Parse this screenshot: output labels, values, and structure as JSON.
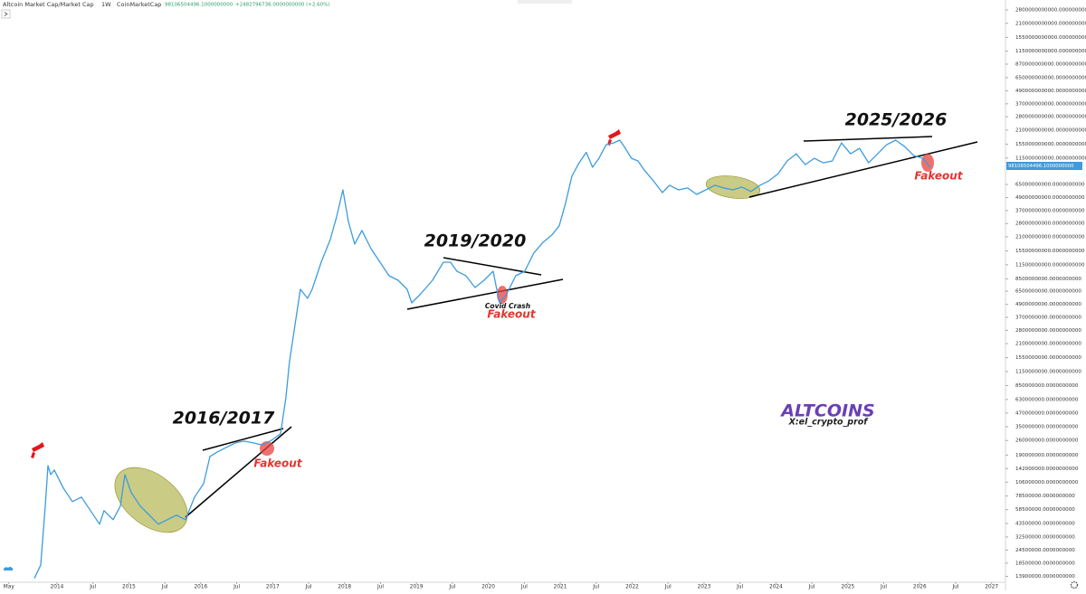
{
  "chart_data": {
    "type": "line",
    "title": "Altcoin Market Cap/Market Cap",
    "interval": "1W",
    "source": "CoinMarketCap",
    "header_value": "98106504496.1000000000",
    "header_change": "+2482796736.0000000000 (+2.60%)",
    "price_tag": "98106504496.1000000000",
    "color": "#3d9be0",
    "log_scale": true,
    "xlim": [
      2013.207,
      2027.18
    ],
    "ylim": [
      12000000,
      3470000000000
    ],
    "xticks": [
      {
        "value": 2013.33,
        "label": "May"
      },
      2014,
      {
        "value": 2014.5,
        "label": "Jul"
      },
      2015,
      {
        "value": 2015.5,
        "label": "Jul"
      },
      2016,
      {
        "value": 2016.5,
        "label": "Jul"
      },
      2017,
      {
        "value": 2017.5,
        "label": "Jul"
      },
      2018,
      {
        "value": 2018.5,
        "label": "Jul"
      },
      2019,
      {
        "value": 2019.5,
        "label": "Jul"
      },
      2020,
      {
        "value": 2020.5,
        "label": "Jul"
      },
      2021,
      {
        "value": 2021.5,
        "label": "Jul"
      },
      2022,
      {
        "value": 2022.5,
        "label": "Jul"
      },
      2023,
      {
        "value": 2023.5,
        "label": "Jul"
      },
      2024,
      {
        "value": 2024.5,
        "label": "Jul"
      },
      2025,
      {
        "value": 2025.5,
        "label": "Jul"
      },
      2026,
      {
        "value": 2026.5,
        "label": "Jul"
      },
      2027
    ],
    "yticks": [
      {
        "value": 2800000000000,
        "label": "2800000000000.0000000000"
      },
      {
        "value": 2100000000000,
        "label": "2100000000000.0000000000"
      },
      {
        "value": 1550000000000,
        "label": "1550000000000.0000000000"
      },
      {
        "value": 1150000000000,
        "label": "1150000000000.0000000000"
      },
      {
        "value": 870000000000,
        "label": "870000000000.0000000000"
      },
      {
        "value": 650000000000,
        "label": "650000000000.0000000000"
      },
      {
        "value": 490000000000,
        "label": "490000000000.0000000000"
      },
      {
        "value": 370000000000,
        "label": "370000000000.0000000000"
      },
      {
        "value": 280000000000,
        "label": "280000000000.0000000000"
      },
      {
        "value": 210000000000,
        "label": "210000000000.0000000000"
      },
      {
        "value": 155000000000,
        "label": "155000000000.0000000000"
      },
      {
        "value": 115000000000,
        "label": "115000000000.0000000000"
      },
      {
        "value": 65000000000,
        "label": "65000000000.0000000000"
      },
      {
        "value": 49000000000,
        "label": "49000000000.0000000000"
      },
      {
        "value": 37000000000,
        "label": "37000000000.0000000000"
      },
      {
        "value": 28000000000,
        "label": "28000000000.0000000000"
      },
      {
        "value": 21000000000,
        "label": "21000000000.0000000000"
      },
      {
        "value": 15500000000,
        "label": "15500000000.0000000000"
      },
      {
        "value": 11500000000,
        "label": "11500000000.0000000000"
      },
      {
        "value": 8500000000,
        "label": "8500000000.0000000000"
      },
      {
        "value": 6500000000,
        "label": "6500000000.0000000000"
      },
      {
        "value": 4900000000,
        "label": "4900000000.0000000000"
      },
      {
        "value": 3700000000,
        "label": "3700000000.0000000000"
      },
      {
        "value": 2800000000,
        "label": "2800000000.0000000000"
      },
      {
        "value": 2100000000,
        "label": "2100000000.0000000000"
      },
      {
        "value": 1550000000,
        "label": "1550000000.0000000000"
      },
      {
        "value": 1150000000,
        "label": "1150000000.0000000000"
      },
      {
        "value": 850000000,
        "label": "850000000.0000000000"
      },
      {
        "value": 630000000,
        "label": "630000000.0000000000"
      },
      {
        "value": 470000000,
        "label": "470000000.0000000000"
      },
      {
        "value": 350000000,
        "label": "350000000.0000000000"
      },
      {
        "value": 260000000,
        "label": "260000000.0000000000"
      },
      {
        "value": 190000000,
        "label": "190000000.0000000000"
      },
      {
        "value": 142000000,
        "label": "142000000.0000000000"
      },
      {
        "value": 106000000,
        "label": "106000000.0000000000"
      },
      {
        "value": 78500000,
        "label": "78500000.0000000000"
      },
      {
        "value": 58500000,
        "label": "58500000.0000000000"
      },
      {
        "value": 43500000,
        "label": "43500000.0000000000"
      },
      {
        "value": 32500000,
        "label": "32500000.0000000000"
      },
      {
        "value": 24500000,
        "label": "24500000.0000000000"
      },
      {
        "value": 18500000,
        "label": "18500000.0000000000"
      },
      {
        "value": 13900000,
        "label": "13900000.0000000000"
      }
    ],
    "x": [
      2013.685,
      2013.773,
      2013.836,
      2013.874,
      2013.912,
      2013.962,
      2014.025,
      2014.088,
      2014.214,
      2014.34,
      2014.466,
      2014.592,
      2014.654,
      2014.78,
      2014.881,
      2014.944,
      2015.032,
      2015.158,
      2015.284,
      2015.41,
      2015.535,
      2015.661,
      2015.787,
      2015.913,
      2016.039,
      2016.127,
      2016.228,
      2016.353,
      2016.479,
      2016.605,
      2016.731,
      2016.857,
      2016.983,
      2017.109,
      2017.184,
      2017.234,
      2017.31,
      2017.385,
      2017.486,
      2017.549,
      2017.675,
      2017.801,
      2017.889,
      2017.977,
      2018.052,
      2018.14,
      2018.241,
      2018.367,
      2018.493,
      2018.619,
      2018.745,
      2018.87,
      2018.933,
      2019.059,
      2019.223,
      2019.374,
      2019.474,
      2019.563,
      2019.688,
      2019.814,
      2019.94,
      2020.066,
      2020.154,
      2020.255,
      2020.381,
      2020.506,
      2020.632,
      2020.758,
      2020.884,
      2020.985,
      2021.073,
      2021.161,
      2021.262,
      2021.362,
      2021.45,
      2021.538,
      2021.639,
      2021.74,
      2021.828,
      2021.891,
      2021.991,
      2022.08,
      2022.168,
      2022.294,
      2022.42,
      2022.52,
      2022.646,
      2022.772,
      2022.898,
      2023.024,
      2023.149,
      2023.275,
      2023.401,
      2023.527,
      2023.653,
      2023.779,
      2023.905,
      2024.03,
      2024.156,
      2024.282,
      2024.408,
      2024.533,
      2024.659,
      2024.785,
      2024.911,
      2025.037,
      2025.163,
      2025.289,
      2025.415,
      2025.54,
      2025.666,
      2025.792,
      2025.918,
      2026.044,
      2026.145
    ],
    "values": [
      13300000,
      17800000,
      63200000,
      151400000,
      124600000,
      137400000,
      113100000,
      93200000,
      69700000,
      76800000,
      57300000,
      42800000,
      57300000,
      47200000,
      63200000,
      124600000,
      84500000,
      63200000,
      52000000,
      42800000,
      47200000,
      52000000,
      47200000,
      76800000,
      102700000,
      184100000,
      203000000,
      223800000,
      246700000,
      256700000,
      246700000,
      235500000,
      261700000,
      300200000,
      656000000,
      1430000000,
      3110000000,
      6770000000,
      5570000000,
      6770000000,
      12150000000,
      19800000000,
      32300000000,
      57900000000,
      29300000000,
      18000000000,
      24100000000,
      16300000000,
      12150000000,
      9070000000,
      8230000000,
      6770000000,
      5060000000,
      6140000000,
      8230000000,
      12150000000,
      12150000000,
      10000000000,
      9070000000,
      7050000000,
      8230000000,
      10000000000,
      5060000000,
      6140000000,
      9070000000,
      10000000000,
      14800000000,
      18600000000,
      21900000000,
      26600000000,
      43300000000,
      77600000000,
      103600000000,
      130000000000,
      94100000000,
      114200000000,
      153000000000,
      159000000000,
      169000000000,
      147000000000,
      114200000000,
      108000000000,
      88700000000,
      70400000000,
      54600000000,
      63900000000,
      57900000000,
      60300000000,
      52500000000,
      57900000000,
      63900000000,
      60300000000,
      57900000000,
      61500000000,
      55800000000,
      63900000000,
      70400000000,
      82000000000,
      108000000000,
      126000000000,
      99700000000,
      114200000000,
      103600000000,
      108000000000,
      159000000000,
      126000000000,
      141500000000,
      103600000000,
      126000000000,
      153000000000,
      169000000000,
      147000000000,
      121000000000,
      114200000000,
      94100000000
    ],
    "annotations": [
      "2016/2017",
      "2019/2020",
      "2025/2026",
      "Fakeout",
      "Fakeout",
      "Fakeout",
      "Covid Crash",
      "ALTCOINS",
      "X:el_crypto_prof"
    ]
  }
}
